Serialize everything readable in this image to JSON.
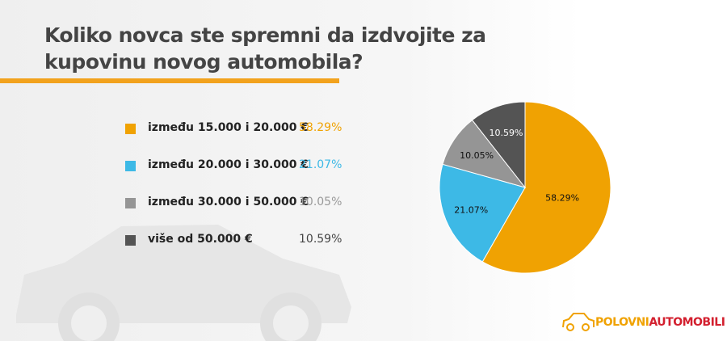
{
  "title_line1": "Koliko novca ste spremni da izdvojite za",
  "title_line2": "kupovinu novog automobila?",
  "chart_data": {
    "type": "pie",
    "title": "Koliko novca ste spremni da izdvojite za kupovinu novog automobila?",
    "categories": [
      "između 15.000 i 20.000 €",
      "između 20.000 i 30.000 €",
      "između 30.000 i 50.000 €",
      "više od 50.000 €"
    ],
    "values": [
      58.29,
      21.07,
      10.05,
      10.59
    ],
    "labels": [
      "58.29%",
      "21.07%",
      "10.05%",
      "10.59%"
    ],
    "colors": [
      "#f0a202",
      "#3db9e6",
      "#959595",
      "#545454"
    ],
    "legend_placement": "left"
  },
  "logo": {
    "part1": "POLOVNI",
    "part2": "AUTOMOBILI",
    "color1": "#f0a202",
    "color2": "#d3202f"
  }
}
